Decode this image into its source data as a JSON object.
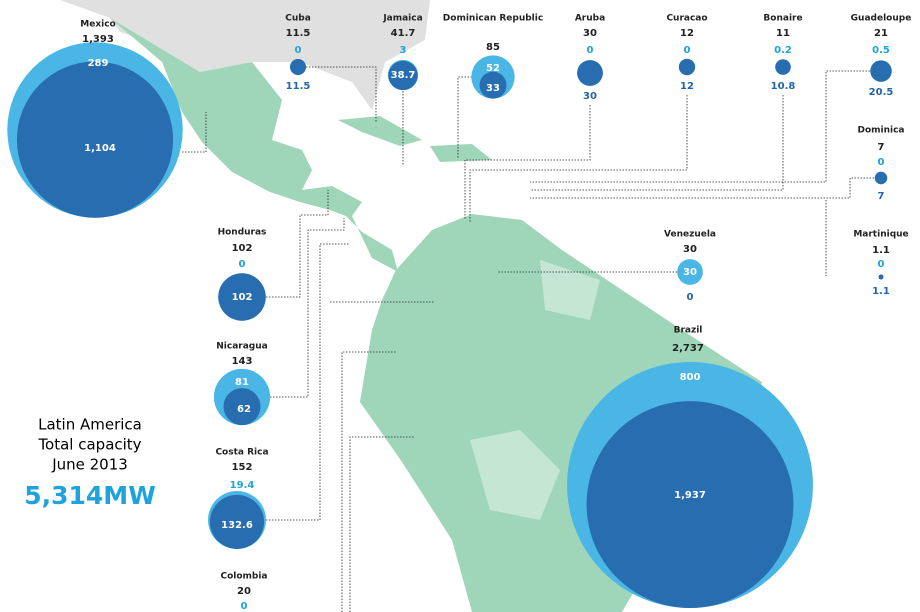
{
  "summary": {
    "region": "Latin America",
    "measure": "Total capacity",
    "date": "June 2013",
    "total": "5,314MW"
  },
  "countries": [
    {
      "name": "Mexico",
      "total": {
        "value": 1393,
        "label": "1,393"
      },
      "light": 289,
      "dark": {
        "value": 1104,
        "label": "1,104"
      }
    },
    {
      "name": "Cuba",
      "total": 11.5,
      "light": 0,
      "dark": 11.5
    },
    {
      "name": "Jamaica",
      "total": 41.7,
      "light": 3,
      "dark": 38.7
    },
    {
      "name": "Dominican Republic",
      "total": 85,
      "light": 52,
      "dark": 33
    },
    {
      "name": "Aruba",
      "total": 30,
      "light": 0,
      "dark": 30
    },
    {
      "name": "Curacao",
      "total": 12,
      "light": 0,
      "dark": 12
    },
    {
      "name": "Bonaire",
      "total": 11,
      "light": 0.2,
      "dark": 10.8
    },
    {
      "name": "Guadeloupe",
      "total": 21,
      "light": 0.5,
      "dark": 20.5
    },
    {
      "name": "Dominica",
      "total": 7,
      "light": 0,
      "dark": 7
    },
    {
      "name": "Martinique",
      "total": 1.1,
      "light": 0,
      "dark": 1.1
    },
    {
      "name": "Venezuela",
      "total": 30,
      "light": 30,
      "dark": 0
    },
    {
      "name": "Honduras",
      "total": 102,
      "light": 0,
      "dark": 102
    },
    {
      "name": "Nicaragua",
      "total": 143,
      "light": 81,
      "dark": 62
    },
    {
      "name": "Costa Rica",
      "total": 152,
      "light": 19.4,
      "dark": 132.6
    },
    {
      "name": "Colombia",
      "total": 20,
      "light": 0
    },
    {
      "name": "Brazil",
      "total": {
        "value": 2737,
        "label": "2,737"
      },
      "light": 800,
      "dark": {
        "value": 1937,
        "label": "1,937"
      }
    }
  ]
}
